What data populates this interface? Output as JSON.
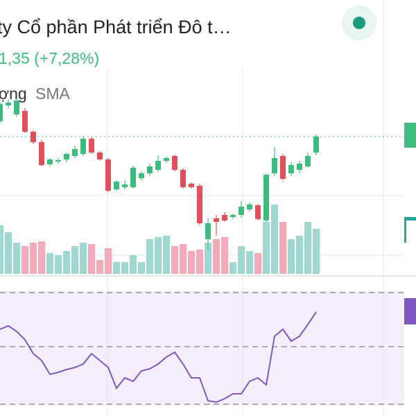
{
  "header": {
    "title": "ty Cổ phần Phát triển Đô t…",
    "change": "1,35 (+7,28%)",
    "legend": [
      "ợng",
      "SMA"
    ]
  },
  "chart_data": {
    "type": "candlestick",
    "open": [
      225,
      248,
      235,
      240,
      210,
      195,
      163,
      167,
      170,
      175,
      178,
      200,
      180,
      170,
      127,
      130,
      130,
      143,
      150,
      155,
      168,
      175,
      155,
      135,
      132,
      55,
      85,
      90,
      87,
      90,
      98,
      104,
      82,
      150,
      175,
      150,
      155,
      160,
      180
    ],
    "high": [
      252,
      256,
      258,
      244,
      212,
      198,
      172,
      172,
      180,
      190,
      203,
      202,
      182,
      172,
      140,
      140,
      161,
      153,
      164,
      176,
      174,
      177,
      157,
      137,
      135,
      85,
      90,
      94,
      92,
      110,
      108,
      106,
      150,
      188,
      178,
      166,
      168,
      180,
      206
    ],
    "low": [
      222,
      244,
      232,
      208,
      192,
      160,
      160,
      164,
      166,
      172,
      175,
      178,
      168,
      123,
      125,
      127,
      128,
      140,
      146,
      152,
      165,
      153,
      128,
      128,
      76,
      40,
      60,
      80,
      84,
      86,
      95,
      82,
      80,
      146,
      140,
      146,
      150,
      158,
      176
    ],
    "close": [
      250,
      252,
      255,
      210,
      195,
      162,
      170,
      169,
      178,
      185,
      200,
      180,
      170,
      125,
      138,
      134,
      158,
      150,
      160,
      168,
      172,
      155,
      130,
      130,
      78,
      78,
      80,
      82,
      90,
      102,
      105,
      84,
      148,
      172,
      142,
      162,
      164,
      175,
      203
    ],
    "volume": [
      70,
      60,
      45,
      40,
      45,
      47,
      30,
      27,
      33,
      40,
      45,
      43,
      20,
      37,
      17,
      17,
      27,
      17,
      50,
      53,
      55,
      40,
      43,
      33,
      35,
      45,
      50,
      53,
      17,
      40,
      33,
      30,
      75,
      100,
      75,
      50,
      55,
      75,
      65
    ],
    "rsi": [
      125,
      130,
      122,
      110,
      90,
      80,
      60,
      63,
      67,
      70,
      75,
      90,
      80,
      70,
      40,
      55,
      50,
      65,
      68,
      75,
      85,
      92,
      75,
      55,
      55,
      22,
      20,
      25,
      32,
      32,
      50,
      55,
      45,
      115,
      125,
      108,
      115,
      132,
      150
    ]
  }
}
